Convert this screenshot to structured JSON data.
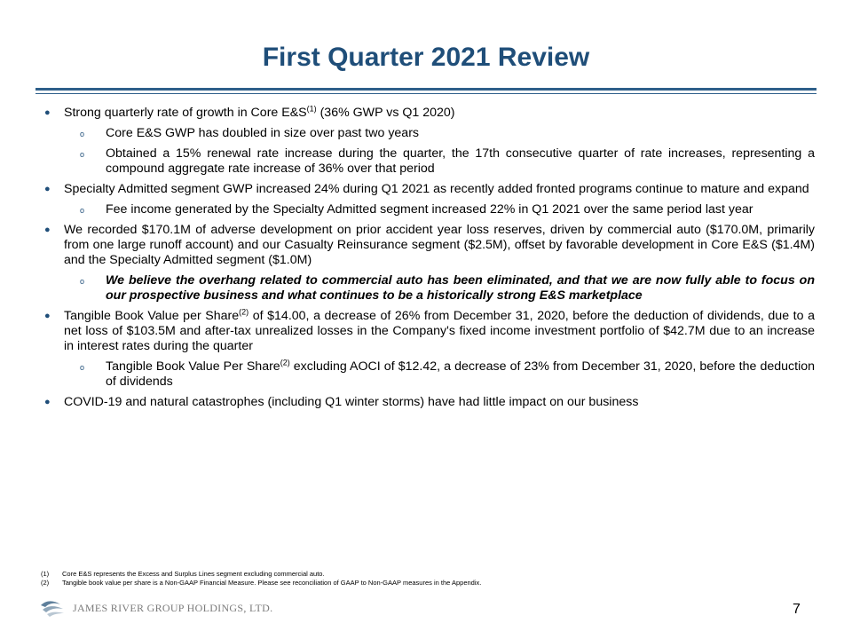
{
  "title": "First Quarter 2021 Review",
  "bullets": {
    "b1": {
      "pre": "Strong quarterly rate of growth in Core E&S",
      "sup": "(1)",
      "post": " (36% GWP vs Q1 2020)"
    },
    "b1_1": "Core E&S GWP has doubled in size over past two years",
    "b1_2": "Obtained a 15% renewal rate increase during the quarter, the 17th consecutive quarter of rate increases, representing a compound aggregate rate increase of 36% over that period",
    "b2": "Specialty Admitted segment GWP increased 24% during Q1 2021 as recently added fronted programs continue to mature and expand",
    "b2_1": "Fee income generated by the Specialty Admitted segment increased 22% in Q1 2021 over the same period last year",
    "b3": "We recorded $170.1M of adverse development on prior accident year loss reserves, driven by commercial auto ($170.0M, primarily from one large runoff account) and our Casualty Reinsurance segment ($2.5M), offset by favorable development in Core E&S ($1.4M) and the Specialty Admitted segment ($1.0M)",
    "b3_1": "We believe the overhang related to commercial auto has been eliminated, and that we are now fully able to focus on our prospective business and what continues to be a historically strong E&S marketplace",
    "b4": {
      "pre": "Tangible Book Value per Share",
      "sup": "(2)",
      "post": " of $14.00, a decrease of 26% from December 31, 2020, before the deduction of dividends, due to a net loss of $103.5M and after-tax unrealized losses in the Company's fixed income investment portfolio of $42.7M due to an increase in interest rates during the quarter"
    },
    "b4_1": {
      "pre": "Tangible Book Value Per Share",
      "sup": "(2)",
      "post": " excluding AOCI of $12.42, a decrease of 23% from December 31, 2020, before the deduction of dividends"
    },
    "b5": "COVID-19 and natural catastrophes (including Q1 winter storms) have had little impact on our business"
  },
  "footnotes": [
    {
      "num": "(1)",
      "text": "Core E&S represents the Excess and Surplus Lines segment excluding commercial auto."
    },
    {
      "num": "(2)",
      "text": "Tangible book value per share is a Non-GAAP Financial Measure. Please see reconciliation of GAAP to Non-GAAP measures in the Appendix."
    }
  ],
  "logo_text": "JAMES RIVER GROUP HOLDINGS, LTD.",
  "page_number": "7",
  "colors": {
    "title": "#1f4e79",
    "rule": "#2e5f8a"
  },
  "icons": {
    "level1": "bullet-dot-icon",
    "level2": "bullet-circle-icon",
    "logo": "river-wave-logo-icon"
  }
}
